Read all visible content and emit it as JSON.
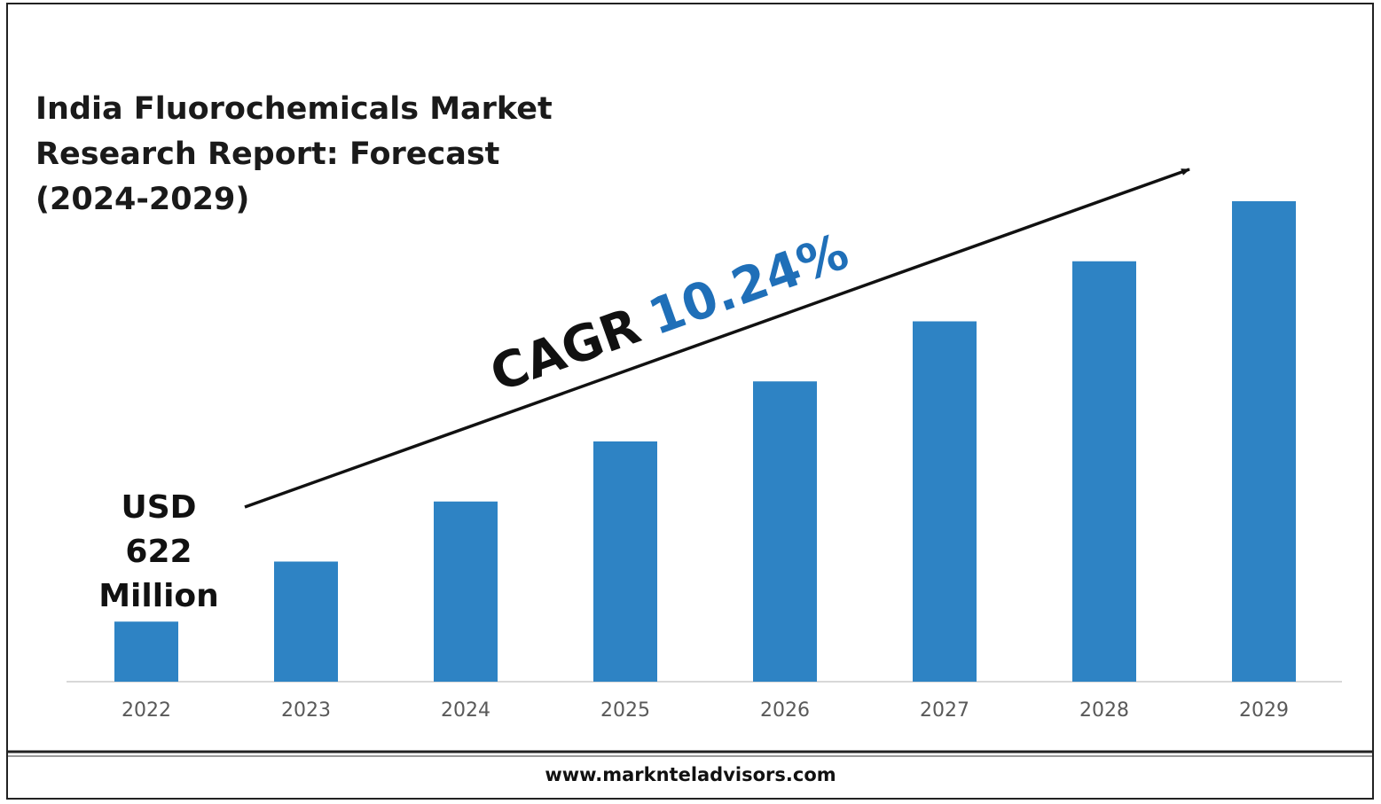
{
  "chart_data": {
    "type": "bar",
    "title_lines": [
      "India Fluorochemicals Market",
      "Research Report: Forecast",
      "(2024-2029)"
    ],
    "categories": [
      "2022",
      "2023",
      "2024",
      "2025",
      "2026",
      "2027",
      "2028",
      "2029"
    ],
    "values": [
      1.0,
      2.0,
      3.0,
      4.0,
      5.0,
      6.0,
      7.0,
      8.0
    ],
    "ylim": [
      0,
      8.0
    ],
    "grid": false,
    "legend": "none",
    "bar_color": "#2e83c4",
    "annotations": {
      "start_value": [
        "USD",
        "622",
        "Million"
      ],
      "cagr_prefix": "CAGR",
      "cagr_value": "10.24%",
      "cagr_value_color": "#1f6fb8"
    }
  },
  "footer": {
    "url": "www.marknteladvisors.com"
  }
}
